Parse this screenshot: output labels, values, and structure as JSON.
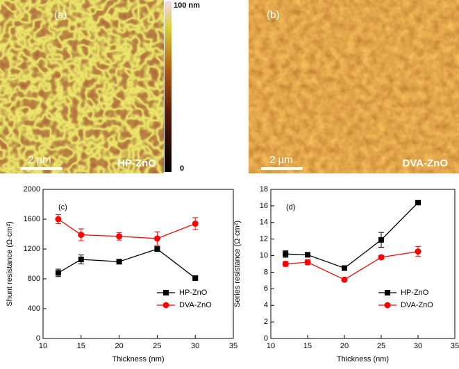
{
  "images": [
    {
      "panel": "(a)",
      "sample": "HP-ZnO",
      "scale_bar": "2 µm"
    },
    {
      "panel": "(b)",
      "sample": "DVA-ZnO",
      "scale_bar": "2 µm"
    }
  ],
  "colorbar": {
    "top": "100 nm",
    "bottom": "0"
  },
  "chart_data": [
    {
      "type": "line",
      "panel": "(c)",
      "x_label": "Thickness (nm)",
      "y_label": "Shunt resistance (Ω·cm²)",
      "x": [
        12,
        15,
        20,
        25,
        30
      ],
      "xlim": [
        10,
        35
      ],
      "xticks": [
        10,
        15,
        20,
        25,
        30,
        35
      ],
      "ylim": [
        0,
        2000
      ],
      "yticks": [
        0,
        400,
        800,
        1200,
        1600,
        2000
      ],
      "legend": "lower right",
      "series": [
        {
          "name": "HP-ZnO",
          "color": "#000000",
          "marker": "square",
          "values": [
            880,
            1060,
            1030,
            1200,
            810
          ],
          "errors": [
            50,
            60,
            30,
            20,
            10
          ]
        },
        {
          "name": "DVA-ZnO",
          "color": "#ff0000",
          "marker": "circle",
          "values": [
            1600,
            1390,
            1370,
            1340,
            1540
          ],
          "errors": [
            60,
            80,
            50,
            90,
            80
          ]
        }
      ]
    },
    {
      "type": "line",
      "panel": "(d)",
      "x_label": "Thickness (nm)",
      "y_label": "Series resistance (Ω·cm²)",
      "x": [
        12,
        15,
        20,
        25,
        30
      ],
      "xlim": [
        10,
        35
      ],
      "xticks": [
        10,
        15,
        20,
        25,
        30,
        35
      ],
      "ylim": [
        0,
        18
      ],
      "yticks": [
        0,
        2,
        4,
        6,
        8,
        10,
        12,
        14,
        16,
        18
      ],
      "legend": "lower right",
      "series": [
        {
          "name": "HP-ZnO",
          "color": "#000000",
          "marker": "square",
          "values": [
            10.2,
            10.1,
            8.5,
            11.9,
            16.4
          ],
          "errors": [
            0.4,
            0.2,
            0.2,
            0.9,
            0.2
          ]
        },
        {
          "name": "DVA-ZnO",
          "color": "#ff0000",
          "marker": "circle",
          "values": [
            9.0,
            9.2,
            7.1,
            9.8,
            10.5
          ],
          "errors": [
            0.3,
            0.3,
            0.2,
            0.2,
            0.6
          ]
        }
      ]
    }
  ]
}
